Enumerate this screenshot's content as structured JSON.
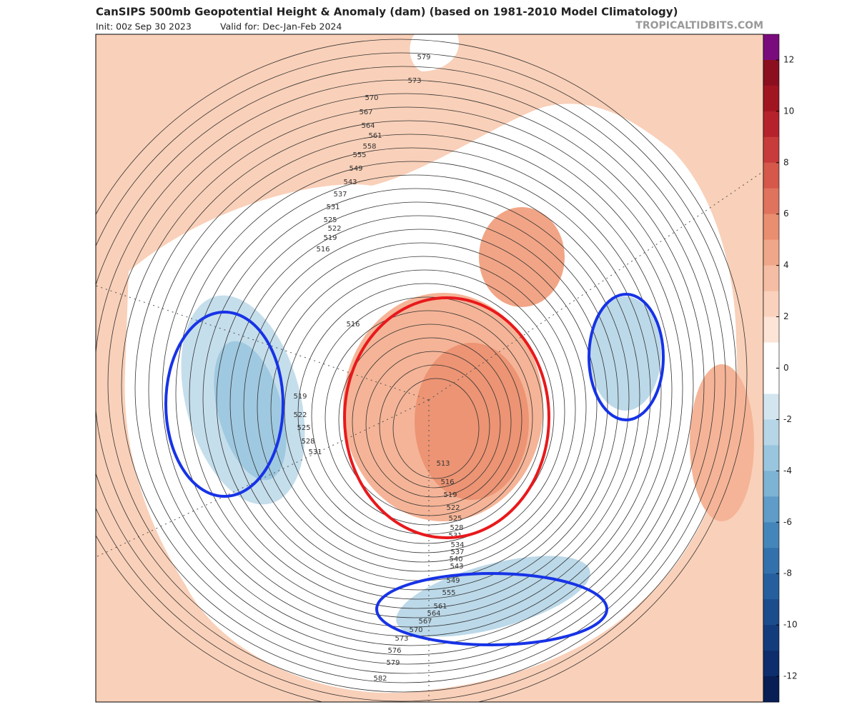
{
  "header": {
    "title": "CanSIPS 500mb Geopotential Height & Anomaly (dam) (based on 1981-2010 Model Climatology)",
    "init": "Init: 00z Sep 30 2023",
    "valid": "Valid for: Dec-Jan-Feb 2024",
    "site": "TROPICALTIDBITS.COM"
  },
  "colorbar": {
    "lim": [
      -13,
      13
    ],
    "ticks": [
      12,
      10,
      8,
      6,
      4,
      2,
      0,
      -2,
      -4,
      -6,
      -8,
      -10,
      -12
    ],
    "colors": [
      "#7a0b7c",
      "#8c0f1f",
      "#a11521",
      "#b6222b",
      "#c73b3b",
      "#d5584a",
      "#e0735e",
      "#e98e70",
      "#f0a789",
      "#f5bda3",
      "#f9d1bd",
      "#fce4d6",
      "#ffffff",
      "#ffffff",
      "#d3e6f0",
      "#b6d6e7",
      "#99c6de",
      "#7db3d3",
      "#5f9cc7",
      "#4586ba",
      "#3271ac",
      "#255f9d",
      "#1b4c8c",
      "#133c7d",
      "#0d2d6c",
      "#081e55"
    ]
  },
  "contour_labels": [
    579,
    573,
    570,
    567,
    564,
    561,
    558,
    555,
    549,
    543,
    537,
    531,
    525,
    522,
    519,
    516,
    516,
    519,
    522,
    525,
    528,
    531,
    513,
    516,
    519,
    522,
    525,
    528,
    531,
    534,
    537,
    540,
    543,
    549,
    555,
    561,
    564,
    567,
    570,
    573,
    576,
    579,
    582
  ]
}
